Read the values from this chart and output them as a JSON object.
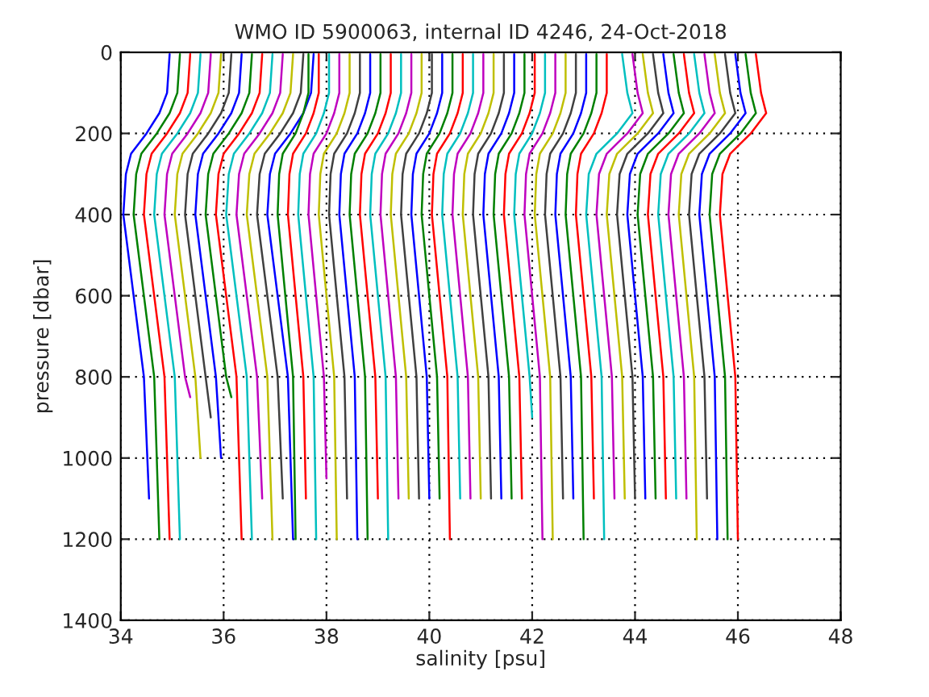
{
  "chart_data": {
    "type": "line",
    "title": "WMO ID 5900063, internal ID 4246, 24-Oct-2018",
    "xlabel": "salinity [psu]",
    "ylabel": "pressure [dbar]",
    "xlim": [
      34,
      48
    ],
    "xticks": [
      34,
      36,
      38,
      40,
      42,
      44,
      46,
      48
    ],
    "ylim": [
      1400,
      0
    ],
    "yticks": [
      0,
      200,
      400,
      600,
      800,
      1000,
      1200,
      1400
    ],
    "grid": true,
    "marker": "none",
    "line_style": "solid",
    "series": [
      {
        "color": "#0000ff",
        "x": [
          34.95,
          34.9,
          34.75,
          34.5,
          34.2,
          34.1,
          34.05,
          34.25,
          34.45,
          34.55
        ],
        "values": [
          5,
          100,
          150,
          200,
          250,
          300,
          400,
          600,
          800,
          1100
        ]
      },
      {
        "color": "#008000",
        "x": [
          35.15,
          35.1,
          34.95,
          34.7,
          34.4,
          34.3,
          34.25,
          34.45,
          34.65,
          34.75
        ],
        "values": [
          5,
          100,
          150,
          200,
          250,
          300,
          400,
          600,
          800,
          1200
        ]
      },
      {
        "color": "#ff0000",
        "x": [
          35.35,
          35.3,
          35.15,
          34.9,
          34.6,
          34.5,
          34.45,
          34.65,
          34.85,
          34.95
        ],
        "values": [
          5,
          100,
          150,
          200,
          250,
          300,
          400,
          600,
          800,
          1200
        ]
      },
      {
        "color": "#00bfbf",
        "x": [
          35.55,
          35.5,
          35.35,
          35.1,
          34.8,
          34.7,
          34.65,
          34.85,
          35.05,
          35.15
        ],
        "values": [
          5,
          100,
          150,
          200,
          250,
          300,
          400,
          600,
          800,
          1200
        ]
      },
      {
        "color": "#bf00bf",
        "x": [
          35.75,
          35.7,
          35.55,
          35.3,
          35.0,
          34.9,
          34.85,
          35.05,
          35.25,
          35.35
        ],
        "values": [
          5,
          100,
          150,
          200,
          250,
          300,
          400,
          600,
          800,
          850
        ]
      },
      {
        "color": "#bfbf00",
        "x": [
          35.95,
          35.9,
          35.75,
          35.5,
          35.2,
          35.1,
          35.05,
          35.25,
          35.45,
          35.55
        ],
        "values": [
          5,
          100,
          150,
          200,
          250,
          300,
          400,
          600,
          800,
          1000
        ]
      },
      {
        "color": "#404040",
        "x": [
          36.15,
          36.1,
          35.95,
          35.7,
          35.4,
          35.3,
          35.25,
          35.45,
          35.65,
          35.75
        ],
        "values": [
          5,
          100,
          150,
          200,
          250,
          300,
          400,
          600,
          800,
          900
        ]
      },
      {
        "color": "#0000ff",
        "x": [
          36.35,
          36.3,
          36.15,
          35.9,
          35.6,
          35.5,
          35.45,
          35.65,
          35.85,
          35.95
        ],
        "values": [
          5,
          100,
          150,
          200,
          250,
          300,
          400,
          600,
          800,
          1000
        ]
      },
      {
        "color": "#008000",
        "x": [
          36.55,
          36.5,
          36.35,
          36.1,
          35.8,
          35.7,
          35.65,
          35.85,
          36.05,
          36.15
        ],
        "values": [
          5,
          100,
          150,
          200,
          250,
          300,
          400,
          600,
          800,
          850
        ]
      },
      {
        "color": "#ff0000",
        "x": [
          36.75,
          36.7,
          36.55,
          36.3,
          36.0,
          35.9,
          35.85,
          36.05,
          36.25,
          36.35
        ],
        "values": [
          5,
          100,
          150,
          200,
          250,
          300,
          400,
          600,
          800,
          1200
        ]
      },
      {
        "color": "#00bfbf",
        "x": [
          36.95,
          36.9,
          36.75,
          36.5,
          36.2,
          36.1,
          36.05,
          36.25,
          36.45,
          36.55
        ],
        "values": [
          5,
          100,
          150,
          200,
          250,
          300,
          400,
          600,
          800,
          1200
        ]
      },
      {
        "color": "#bf00bf",
        "x": [
          37.15,
          37.1,
          36.95,
          36.7,
          36.4,
          36.3,
          36.25,
          36.45,
          36.65,
          36.75
        ],
        "values": [
          5,
          100,
          150,
          200,
          250,
          300,
          400,
          600,
          800,
          1100
        ]
      },
      {
        "color": "#bfbf00",
        "x": [
          37.35,
          37.3,
          37.15,
          36.9,
          36.6,
          36.5,
          36.45,
          36.65,
          36.85,
          36.95
        ],
        "values": [
          5,
          100,
          150,
          200,
          250,
          300,
          400,
          600,
          800,
          1200
        ]
      },
      {
        "color": "#404040",
        "x": [
          37.55,
          37.5,
          37.35,
          37.1,
          36.8,
          36.7,
          36.65,
          36.85,
          37.05,
          37.15
        ],
        "values": [
          5,
          100,
          150,
          200,
          250,
          300,
          400,
          600,
          800,
          1100
        ]
      },
      {
        "color": "#0000ff",
        "x": [
          37.75,
          37.7,
          37.55,
          37.3,
          37.0,
          36.9,
          36.85,
          37.05,
          37.25,
          37.35
        ],
        "values": [
          5,
          100,
          150,
          200,
          250,
          300,
          400,
          600,
          800,
          1200
        ]
      },
      {
        "color": "#008000",
        "x": [
          37.65,
          37.65,
          37.55,
          37.4,
          37.15,
          37.08,
          37.05,
          37.2,
          37.35,
          37.4
        ],
        "values": [
          5,
          100,
          150,
          200,
          250,
          300,
          400,
          600,
          800,
          1200
        ]
      },
      {
        "color": "#ff0000",
        "x": [
          37.85,
          37.85,
          37.75,
          37.6,
          37.35,
          37.28,
          37.25,
          37.4,
          37.55,
          37.6
        ],
        "values": [
          5,
          100,
          150,
          200,
          250,
          300,
          400,
          600,
          800,
          1100
        ]
      },
      {
        "color": "#00bfbf",
        "x": [
          38.05,
          38.05,
          37.95,
          37.8,
          37.55,
          37.48,
          37.45,
          37.6,
          37.75,
          37.8
        ],
        "values": [
          5,
          100,
          150,
          200,
          250,
          300,
          400,
          600,
          800,
          1200
        ]
      },
      {
        "color": "#bf00bf",
        "x": [
          38.25,
          38.25,
          38.15,
          38.0,
          37.75,
          37.68,
          37.65,
          37.8,
          37.95,
          38.0
        ],
        "values": [
          5,
          100,
          150,
          200,
          250,
          300,
          400,
          600,
          800,
          1050
        ]
      },
      {
        "color": "#bfbf00",
        "x": [
          38.45,
          38.45,
          38.35,
          38.2,
          37.95,
          37.88,
          37.85,
          38.0,
          38.15,
          38.2
        ],
        "values": [
          5,
          100,
          150,
          200,
          250,
          300,
          400,
          600,
          800,
          1200
        ]
      },
      {
        "color": "#404040",
        "x": [
          38.65,
          38.65,
          38.55,
          38.4,
          38.15,
          38.08,
          38.05,
          38.2,
          38.35,
          38.4
        ],
        "values": [
          5,
          100,
          150,
          200,
          250,
          300,
          400,
          600,
          800,
          1100
        ]
      },
      {
        "color": "#0000ff",
        "x": [
          38.85,
          38.85,
          38.75,
          38.6,
          38.35,
          38.28,
          38.25,
          38.4,
          38.55,
          38.6
        ],
        "values": [
          5,
          100,
          150,
          200,
          250,
          300,
          400,
          600,
          800,
          1200
        ]
      },
      {
        "color": "#008000",
        "x": [
          39.05,
          39.05,
          38.95,
          38.8,
          38.55,
          38.48,
          38.45,
          38.6,
          38.75,
          38.8
        ],
        "values": [
          5,
          100,
          150,
          200,
          250,
          300,
          400,
          600,
          800,
          1200
        ]
      },
      {
        "color": "#ff0000",
        "x": [
          39.25,
          39.25,
          39.15,
          39.0,
          38.75,
          38.68,
          38.65,
          38.8,
          38.95,
          39.0
        ],
        "values": [
          5,
          100,
          150,
          200,
          250,
          300,
          400,
          600,
          800,
          1100
        ]
      },
      {
        "color": "#00bfbf",
        "x": [
          39.45,
          39.45,
          39.35,
          39.2,
          38.95,
          38.88,
          38.85,
          39.0,
          39.15,
          39.2
        ],
        "values": [
          5,
          100,
          150,
          200,
          250,
          300,
          400,
          600,
          800,
          1200
        ]
      },
      {
        "color": "#bf00bf",
        "x": [
          39.65,
          39.65,
          39.55,
          39.4,
          39.15,
          39.08,
          39.05,
          39.2,
          39.35,
          39.4
        ],
        "values": [
          5,
          100,
          150,
          200,
          250,
          300,
          400,
          600,
          800,
          1100
        ]
      },
      {
        "color": "#bfbf00",
        "x": [
          39.85,
          39.85,
          39.75,
          39.6,
          39.35,
          39.28,
          39.25,
          39.4,
          39.55,
          39.6
        ],
        "values": [
          5,
          100,
          150,
          200,
          250,
          300,
          400,
          600,
          800,
          1100
        ]
      },
      {
        "color": "#404040",
        "x": [
          40.05,
          40.05,
          39.95,
          39.8,
          39.55,
          39.48,
          39.45,
          39.6,
          39.75,
          39.8
        ],
        "values": [
          5,
          100,
          150,
          200,
          250,
          300,
          400,
          600,
          800,
          1100
        ]
      },
      {
        "color": "#0000ff",
        "x": [
          40.25,
          40.25,
          40.15,
          40.0,
          39.75,
          39.68,
          39.65,
          39.8,
          39.95,
          40.0
        ],
        "values": [
          5,
          100,
          150,
          200,
          250,
          300,
          400,
          600,
          800,
          1100
        ]
      },
      {
        "color": "#008000",
        "x": [
          40.45,
          40.45,
          40.35,
          40.2,
          39.95,
          39.88,
          39.85,
          40.0,
          40.15,
          40.2
        ],
        "values": [
          5,
          100,
          150,
          200,
          250,
          300,
          400,
          600,
          800,
          1100
        ]
      },
      {
        "color": "#ff0000",
        "x": [
          40.65,
          40.65,
          40.55,
          40.4,
          40.15,
          40.08,
          40.05,
          40.2,
          40.35,
          40.4
        ],
        "values": [
          5,
          100,
          150,
          200,
          250,
          300,
          400,
          600,
          800,
          1200
        ]
      },
      {
        "color": "#00bfbf",
        "x": [
          40.85,
          40.85,
          40.75,
          40.6,
          40.35,
          40.28,
          40.25,
          40.4,
          40.55,
          40.6
        ],
        "values": [
          5,
          100,
          150,
          200,
          250,
          300,
          400,
          600,
          800,
          1100
        ]
      },
      {
        "color": "#bf00bf",
        "x": [
          41.05,
          41.05,
          40.95,
          40.8,
          40.55,
          40.48,
          40.45,
          40.6,
          40.75,
          40.8
        ],
        "values": [
          5,
          100,
          150,
          200,
          250,
          300,
          400,
          600,
          800,
          1100
        ]
      },
      {
        "color": "#bfbf00",
        "x": [
          41.25,
          41.25,
          41.15,
          41.0,
          40.75,
          40.68,
          40.65,
          40.8,
          40.95,
          41.0
        ],
        "values": [
          5,
          100,
          150,
          200,
          250,
          300,
          400,
          600,
          800,
          1100
        ]
      },
      {
        "color": "#404040",
        "x": [
          41.45,
          41.45,
          41.35,
          41.2,
          40.95,
          40.88,
          40.85,
          41.0,
          41.15,
          41.2
        ],
        "values": [
          5,
          100,
          150,
          200,
          250,
          300,
          400,
          600,
          800,
          1100
        ]
      },
      {
        "color": "#0000ff",
        "x": [
          41.65,
          41.65,
          41.55,
          41.4,
          41.15,
          41.08,
          41.05,
          41.2,
          41.35,
          41.4
        ],
        "values": [
          5,
          100,
          150,
          200,
          250,
          300,
          400,
          600,
          800,
          1100
        ]
      },
      {
        "color": "#008000",
        "x": [
          41.85,
          41.85,
          41.75,
          41.6,
          41.35,
          41.28,
          41.25,
          41.4,
          41.55,
          41.6
        ],
        "values": [
          5,
          100,
          150,
          200,
          250,
          300,
          400,
          600,
          800,
          1100
        ]
      },
      {
        "color": "#ff0000",
        "x": [
          42.05,
          42.05,
          41.95,
          41.8,
          41.55,
          41.48,
          41.45,
          41.6,
          41.75,
          41.8
        ],
        "values": [
          5,
          100,
          150,
          200,
          250,
          300,
          400,
          600,
          800,
          1100
        ]
      },
      {
        "color": "#00bfbf",
        "x": [
          42.25,
          42.25,
          42.15,
          42.0,
          41.75,
          41.68,
          41.65,
          41.8,
          41.95,
          42.0
        ],
        "values": [
          5,
          100,
          150,
          200,
          250,
          300,
          400,
          600,
          800,
          900
        ]
      },
      {
        "color": "#bf00bf",
        "x": [
          42.45,
          42.45,
          42.35,
          42.2,
          41.95,
          41.88,
          41.85,
          42.0,
          42.15,
          42.2
        ],
        "values": [
          5,
          100,
          150,
          200,
          250,
          300,
          400,
          600,
          800,
          1200
        ]
      },
      {
        "color": "#bfbf00",
        "x": [
          42.65,
          42.65,
          42.55,
          42.4,
          42.15,
          42.08,
          42.05,
          42.2,
          42.35,
          42.4
        ],
        "values": [
          5,
          100,
          150,
          200,
          250,
          300,
          400,
          600,
          800,
          1200
        ]
      },
      {
        "color": "#404040",
        "x": [
          42.85,
          42.85,
          42.75,
          42.6,
          42.35,
          42.28,
          42.25,
          42.4,
          42.55,
          42.6
        ],
        "values": [
          5,
          100,
          150,
          200,
          250,
          300,
          400,
          600,
          800,
          1100
        ]
      },
      {
        "color": "#0000ff",
        "x": [
          43.05,
          43.05,
          42.95,
          42.8,
          42.55,
          42.48,
          42.45,
          42.6,
          42.75,
          42.8
        ],
        "values": [
          5,
          100,
          150,
          200,
          250,
          300,
          400,
          600,
          800,
          1100
        ]
      },
      {
        "color": "#008000",
        "x": [
          43.25,
          43.25,
          43.15,
          43.0,
          42.75,
          42.68,
          42.65,
          42.8,
          42.95,
          43.0
        ],
        "values": [
          5,
          100,
          150,
          200,
          250,
          300,
          400,
          600,
          800,
          1200
        ]
      },
      {
        "color": "#ff0000",
        "x": [
          43.45,
          43.45,
          43.35,
          43.2,
          42.95,
          42.88,
          42.85,
          43.0,
          43.15,
          43.2
        ],
        "values": [
          5,
          100,
          150,
          200,
          250,
          300,
          400,
          600,
          800,
          1100
        ]
      },
      {
        "color": "#00bfbf",
        "x": [
          43.75,
          43.85,
          43.95,
          43.65,
          43.25,
          43.1,
          43.05,
          43.2,
          43.35,
          43.4
        ],
        "values": [
          5,
          100,
          150,
          200,
          250,
          300,
          400,
          600,
          800,
          1200
        ]
      },
      {
        "color": "#bf00bf",
        "x": [
          43.95,
          44.05,
          44.15,
          43.85,
          43.45,
          43.3,
          43.25,
          43.4,
          43.55,
          43.6
        ],
        "values": [
          5,
          100,
          150,
          200,
          250,
          300,
          400,
          600,
          800,
          1100
        ]
      },
      {
        "color": "#bfbf00",
        "x": [
          44.15,
          44.25,
          44.35,
          44.05,
          43.65,
          43.5,
          43.45,
          43.6,
          43.75,
          43.8
        ],
        "values": [
          5,
          100,
          150,
          200,
          250,
          300,
          400,
          600,
          800,
          1100
        ]
      },
      {
        "color": "#404040",
        "x": [
          44.35,
          44.45,
          44.55,
          44.25,
          43.85,
          43.7,
          43.65,
          43.8,
          43.95,
          44.0
        ],
        "values": [
          5,
          100,
          150,
          200,
          250,
          300,
          400,
          600,
          800,
          1100
        ]
      },
      {
        "color": "#0000ff",
        "x": [
          44.55,
          44.65,
          44.75,
          44.45,
          44.05,
          43.9,
          43.85,
          44.0,
          44.15,
          44.2
        ],
        "values": [
          5,
          100,
          150,
          200,
          250,
          300,
          400,
          600,
          800,
          1100
        ]
      },
      {
        "color": "#008000",
        "x": [
          44.75,
          44.85,
          44.95,
          44.65,
          44.25,
          44.1,
          44.05,
          44.2,
          44.35,
          44.4
        ],
        "values": [
          5,
          100,
          150,
          200,
          250,
          300,
          400,
          600,
          800,
          1100
        ]
      },
      {
        "color": "#ff0000",
        "x": [
          44.95,
          45.05,
          45.15,
          44.85,
          44.45,
          44.3,
          44.25,
          44.4,
          44.55,
          44.6
        ],
        "values": [
          5,
          100,
          150,
          200,
          250,
          300,
          400,
          600,
          800,
          1100
        ]
      },
      {
        "color": "#00bfbf",
        "x": [
          45.15,
          45.25,
          45.35,
          45.05,
          44.65,
          44.5,
          44.45,
          44.6,
          44.75,
          44.8
        ],
        "values": [
          5,
          100,
          150,
          200,
          250,
          300,
          400,
          600,
          800,
          1100
        ]
      },
      {
        "color": "#bf00bf",
        "x": [
          45.35,
          45.45,
          45.55,
          45.25,
          44.85,
          44.7,
          44.65,
          44.8,
          44.95,
          45.0
        ],
        "values": [
          5,
          100,
          150,
          200,
          250,
          300,
          400,
          600,
          800,
          1100
        ]
      },
      {
        "color": "#bfbf00",
        "x": [
          45.55,
          45.65,
          45.75,
          45.45,
          45.05,
          44.9,
          44.85,
          45.0,
          45.15,
          45.2
        ],
        "values": [
          5,
          100,
          150,
          200,
          250,
          300,
          400,
          600,
          800,
          1200
        ]
      },
      {
        "color": "#404040",
        "x": [
          45.75,
          45.85,
          45.95,
          45.65,
          45.25,
          45.1,
          45.05,
          45.2,
          45.35,
          45.4
        ],
        "values": [
          5,
          100,
          150,
          200,
          250,
          300,
          400,
          600,
          800,
          1100
        ]
      },
      {
        "color": "#0000ff",
        "x": [
          45.95,
          46.05,
          46.15,
          45.85,
          45.45,
          45.3,
          45.25,
          45.4,
          45.55,
          45.6
        ],
        "values": [
          5,
          100,
          150,
          200,
          250,
          300,
          400,
          600,
          800,
          1200
        ]
      },
      {
        "color": "#008000",
        "x": [
          46.15,
          46.25,
          46.35,
          46.05,
          45.65,
          45.5,
          45.45,
          45.6,
          45.75,
          45.8
        ],
        "values": [
          5,
          100,
          150,
          200,
          250,
          300,
          400,
          600,
          800,
          1200
        ]
      },
      {
        "color": "#ff0000",
        "x": [
          46.35,
          46.45,
          46.55,
          46.25,
          45.85,
          45.7,
          45.65,
          45.8,
          45.95,
          46.0
        ],
        "values": [
          5,
          100,
          150,
          200,
          250,
          300,
          400,
          600,
          800,
          1200
        ]
      }
    ]
  }
}
